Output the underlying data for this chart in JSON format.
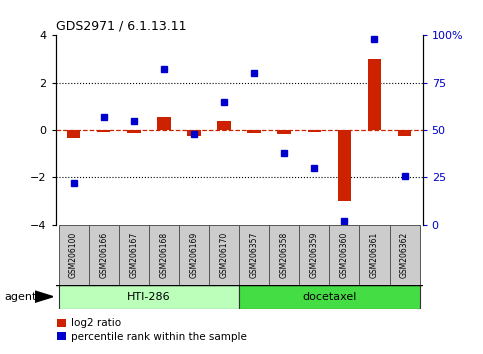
{
  "title": "GDS2971 / 6.1.13.11",
  "samples": [
    "GSM206100",
    "GSM206166",
    "GSM206167",
    "GSM206168",
    "GSM206169",
    "GSM206170",
    "GSM206357",
    "GSM206358",
    "GSM206359",
    "GSM206360",
    "GSM206361",
    "GSM206362"
  ],
  "log2_ratio": [
    -0.35,
    -0.1,
    -0.12,
    0.55,
    -0.25,
    0.38,
    -0.12,
    -0.18,
    -0.08,
    -3.0,
    3.0,
    -0.25
  ],
  "percentile_rank": [
    22,
    57,
    55,
    82,
    48,
    65,
    80,
    38,
    30,
    2,
    98,
    26
  ],
  "group1_samples": 6,
  "group1_label": "HTI-286",
  "group2_label": "docetaxel",
  "agent_label": "agent",
  "legend_red": "log2 ratio",
  "legend_blue": "percentile rank within the sample",
  "ylim": [
    -4,
    4
  ],
  "y_ticks_left": [
    -4,
    -2,
    0,
    2,
    4
  ],
  "y_ticks_right": [
    0,
    25,
    50,
    75,
    100
  ],
  "bar_color": "#cc2200",
  "dot_color": "#0000cc",
  "group1_color": "#bbffbb",
  "group2_color": "#44dd44",
  "sample_box_color": "#cccccc",
  "background_color": "#ffffff",
  "dashed_zero_color": "#cc2200"
}
